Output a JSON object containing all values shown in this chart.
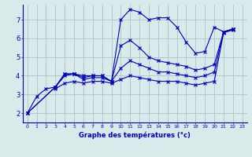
{
  "xlabel": "Graphe des températures (°c)",
  "bg_color": "#daeaea",
  "grid_color": "#aacccc",
  "line_color": "#0000bb",
  "xlim": [
    -0.5,
    23.5
  ],
  "ylim": [
    1.5,
    7.8
  ],
  "xticks": [
    0,
    1,
    2,
    3,
    4,
    5,
    6,
    7,
    8,
    9,
    10,
    11,
    12,
    13,
    14,
    15,
    16,
    17,
    18,
    19,
    20,
    21,
    22,
    23
  ],
  "yticks": [
    2,
    3,
    4,
    5,
    6,
    7
  ],
  "lines": [
    [
      0,
      2.0,
      1,
      2.9,
      2,
      3.3,
      3,
      3.4,
      4,
      4.0,
      5,
      4.1,
      6,
      4.0,
      7,
      4.0,
      8,
      4.0,
      9,
      3.7,
      10,
      7.0,
      11,
      7.55,
      12,
      7.4,
      13,
      7.0,
      14,
      7.1,
      15,
      7.1,
      16,
      6.6,
      17,
      5.8,
      18,
      5.2,
      19,
      5.3,
      20,
      6.6,
      21,
      6.35,
      22,
      6.5
    ],
    [
      0,
      2.0,
      3,
      3.4,
      4,
      4.1,
      5,
      4.1,
      6,
      3.9,
      7,
      4.0,
      8,
      4.0,
      9,
      3.7,
      10,
      5.6,
      11,
      5.9,
      12,
      5.5,
      13,
      5.0,
      14,
      4.8,
      15,
      4.7,
      16,
      4.6,
      17,
      4.5,
      18,
      4.3,
      19,
      4.4,
      20,
      4.6,
      21,
      6.35,
      22,
      6.5
    ],
    [
      0,
      2.0,
      3,
      3.4,
      4,
      4.1,
      5,
      4.1,
      6,
      3.8,
      7,
      3.9,
      8,
      3.9,
      9,
      3.7,
      10,
      4.4,
      11,
      4.8,
      12,
      4.6,
      13,
      4.4,
      14,
      4.2,
      15,
      4.2,
      16,
      4.1,
      17,
      4.0,
      18,
      3.9,
      19,
      4.0,
      20,
      4.2,
      21,
      6.35,
      22,
      6.5
    ],
    [
      3,
      3.3,
      4,
      3.6,
      5,
      3.7,
      6,
      3.6,
      7,
      3.7,
      8,
      3.7,
      9,
      3.6,
      10,
      3.8,
      11,
      4.0,
      12,
      3.9,
      13,
      3.8,
      14,
      3.7,
      15,
      3.7,
      16,
      3.7,
      17,
      3.6,
      18,
      3.5,
      19,
      3.6,
      20,
      3.7,
      21,
      6.3,
      22,
      6.45
    ]
  ]
}
